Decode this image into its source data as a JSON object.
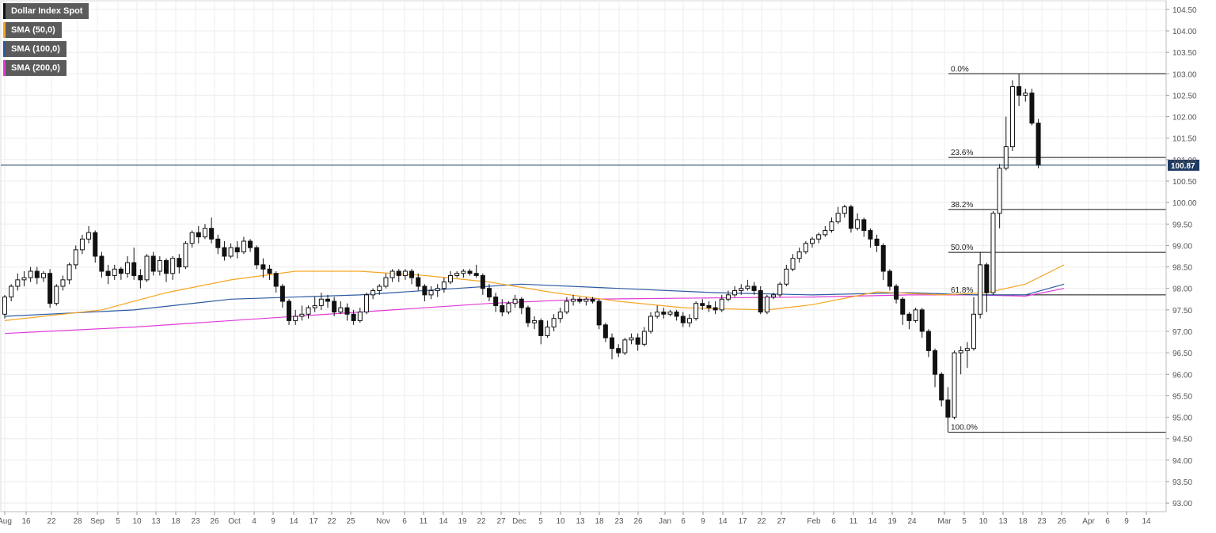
{
  "legend": [
    {
      "label": "Dollar Index Spot",
      "color": "#111111"
    },
    {
      "label": "SMA (50,0)",
      "color": "#f5a623"
    },
    {
      "label": "SMA (100,0)",
      "color": "#2c5aa0"
    },
    {
      "label": "SMA (200,0)",
      "color": "#e23ad8"
    }
  ],
  "chart_data": {
    "type": "candlestick",
    "title": "Dollar Index Spot",
    "ylim": [
      92.8,
      104.7
    ],
    "y_ticks": [
      "93.00",
      "93.50",
      "94.00",
      "94.50",
      "95.00",
      "95.50",
      "96.00",
      "96.50",
      "97.00",
      "97.50",
      "98.00",
      "98.50",
      "99.00",
      "99.50",
      "100.00",
      "100.50",
      "101.00",
      "101.50",
      "102.00",
      "102.50",
      "103.00",
      "103.50",
      "104.00",
      "104.50"
    ],
    "x_ticks": [
      "Aug",
      "16",
      "22",
      "28",
      "Sep",
      "5",
      "10",
      "13",
      "18",
      "23",
      "26",
      "Oct",
      "4",
      "9",
      "14",
      "17",
      "22",
      "25",
      "Nov",
      "6",
      "11",
      "14",
      "19",
      "22",
      "27",
      "Dec",
      "5",
      "10",
      "13",
      "18",
      "23",
      "26",
      "Jan",
      "6",
      "9",
      "14",
      "17",
      "22",
      "27",
      "Feb",
      "6",
      "11",
      "14",
      "19",
      "24",
      "Mar",
      "5",
      "10",
      "13",
      "18",
      "23",
      "26",
      "Apr",
      "6",
      "9",
      "14"
    ],
    "current_price": "100.87",
    "fibonacci": [
      {
        "label": "0.0%",
        "value": 103.0
      },
      {
        "label": "23.6%",
        "value": 101.05
      },
      {
        "label": "38.2%",
        "value": 99.84
      },
      {
        "label": "50.0%",
        "value": 98.84
      },
      {
        "label": "61.8%",
        "value": 97.85
      },
      {
        "label": "100.0%",
        "value": 94.65
      }
    ],
    "candles": [
      [
        97.4,
        97.8,
        97.3,
        97.85
      ],
      [
        97.8,
        98.05,
        97.7,
        98.1
      ],
      [
        98.05,
        98.2,
        97.95,
        98.35
      ],
      [
        98.2,
        98.25,
        98.05,
        98.4
      ],
      [
        98.25,
        98.4,
        98.15,
        98.5
      ],
      [
        98.4,
        98.25,
        98.1,
        98.5
      ],
      [
        98.25,
        98.35,
        98.15,
        98.4
      ],
      [
        98.35,
        97.65,
        97.55,
        98.45
      ],
      [
        97.65,
        98.05,
        97.6,
        98.1
      ],
      [
        98.05,
        98.2,
        97.95,
        98.3
      ],
      [
        98.2,
        98.55,
        98.1,
        98.6
      ],
      [
        98.55,
        98.9,
        98.45,
        99.0
      ],
      [
        98.9,
        99.15,
        98.8,
        99.25
      ],
      [
        99.15,
        99.3,
        99.05,
        99.45
      ],
      [
        99.3,
        98.75,
        98.6,
        99.35
      ],
      [
        98.75,
        98.4,
        98.25,
        98.85
      ],
      [
        98.4,
        98.3,
        98.1,
        98.55
      ],
      [
        98.3,
        98.45,
        98.2,
        98.55
      ],
      [
        98.45,
        98.35,
        98.2,
        98.5
      ],
      [
        98.35,
        98.6,
        98.25,
        98.75
      ],
      [
        98.6,
        98.3,
        98.2,
        98.95
      ],
      [
        98.3,
        98.2,
        98.0,
        98.45
      ],
      [
        98.2,
        98.75,
        98.15,
        98.8
      ],
      [
        98.75,
        98.4,
        98.3,
        98.85
      ],
      [
        98.4,
        98.65,
        98.3,
        98.75
      ],
      [
        98.65,
        98.35,
        98.15,
        98.7
      ],
      [
        98.35,
        98.7,
        98.2,
        98.75
      ],
      [
        98.7,
        98.5,
        98.35,
        98.8
      ],
      [
        98.5,
        99.05,
        98.45,
        99.1
      ],
      [
        99.05,
        99.3,
        98.95,
        99.35
      ],
      [
        99.3,
        99.2,
        99.05,
        99.45
      ],
      [
        99.2,
        99.4,
        99.15,
        99.5
      ],
      [
        99.4,
        99.15,
        99.05,
        99.65
      ],
      [
        99.15,
        98.95,
        98.8,
        99.25
      ],
      [
        98.95,
        98.75,
        98.65,
        99.1
      ],
      [
        98.75,
        98.95,
        98.7,
        99.05
      ],
      [
        98.95,
        98.85,
        98.7,
        99.1
      ],
      [
        98.85,
        99.1,
        98.8,
        99.2
      ],
      [
        99.1,
        98.95,
        98.85,
        99.15
      ],
      [
        98.95,
        98.55,
        98.45,
        99.0
      ],
      [
        98.55,
        98.45,
        98.25,
        98.7
      ],
      [
        98.45,
        98.35,
        98.2,
        98.55
      ],
      [
        98.35,
        98.05,
        97.9,
        98.4
      ],
      [
        98.05,
        97.7,
        97.55,
        98.1
      ],
      [
        97.7,
        97.25,
        97.15,
        97.75
      ],
      [
        97.25,
        97.35,
        97.15,
        97.5
      ],
      [
        97.35,
        97.4,
        97.25,
        97.6
      ],
      [
        97.4,
        97.55,
        97.3,
        97.6
      ],
      [
        97.55,
        97.6,
        97.45,
        97.8
      ],
      [
        97.6,
        97.75,
        97.5,
        97.9
      ],
      [
        97.75,
        97.7,
        97.55,
        97.85
      ],
      [
        97.7,
        97.45,
        97.35,
        97.8
      ],
      [
        97.45,
        97.55,
        97.4,
        97.7
      ],
      [
        97.55,
        97.4,
        97.25,
        97.65
      ],
      [
        97.4,
        97.25,
        97.15,
        97.5
      ],
      [
        97.25,
        97.45,
        97.2,
        97.55
      ],
      [
        97.45,
        97.85,
        97.4,
        97.9
      ],
      [
        97.85,
        97.95,
        97.75,
        98.0
      ],
      [
        97.95,
        98.05,
        97.85,
        98.1
      ],
      [
        98.05,
        98.25,
        98.0,
        98.35
      ],
      [
        98.25,
        98.4,
        98.15,
        98.45
      ],
      [
        98.4,
        98.3,
        98.15,
        98.45
      ],
      [
        98.3,
        98.4,
        98.2,
        98.45
      ],
      [
        98.4,
        98.25,
        98.1,
        98.45
      ],
      [
        98.25,
        98.05,
        97.95,
        98.35
      ],
      [
        98.05,
        97.85,
        97.7,
        98.1
      ],
      [
        97.85,
        97.95,
        97.75,
        98.05
      ],
      [
        97.95,
        98.0,
        97.8,
        98.1
      ],
      [
        98.0,
        98.15,
        97.9,
        98.25
      ],
      [
        98.15,
        98.3,
        98.1,
        98.4
      ],
      [
        98.3,
        98.35,
        98.25,
        98.4
      ],
      [
        98.35,
        98.4,
        98.25,
        98.45
      ],
      [
        98.4,
        98.35,
        98.3,
        98.45
      ],
      [
        98.35,
        98.3,
        98.25,
        98.55
      ],
      [
        98.3,
        98.0,
        97.85,
        98.35
      ],
      [
        98.0,
        97.8,
        97.7,
        98.1
      ],
      [
        97.8,
        97.6,
        97.45,
        97.9
      ],
      [
        97.6,
        97.45,
        97.35,
        97.75
      ],
      [
        97.45,
        97.65,
        97.4,
        97.7
      ],
      [
        97.65,
        97.75,
        97.55,
        97.85
      ],
      [
        97.75,
        97.55,
        97.4,
        97.8
      ],
      [
        97.55,
        97.2,
        97.1,
        97.6
      ],
      [
        97.2,
        97.25,
        97.05,
        97.35
      ],
      [
        97.25,
        96.9,
        96.7,
        97.3
      ],
      [
        96.9,
        97.1,
        96.85,
        97.25
      ],
      [
        97.1,
        97.3,
        97.0,
        97.4
      ],
      [
        97.3,
        97.45,
        97.2,
        97.55
      ],
      [
        97.45,
        97.7,
        97.4,
        97.8
      ],
      [
        97.7,
        97.75,
        97.6,
        97.85
      ],
      [
        97.75,
        97.7,
        97.65,
        97.8
      ],
      [
        97.7,
        97.75,
        97.6,
        97.8
      ],
      [
        97.75,
        97.7,
        97.65,
        97.8
      ],
      [
        97.7,
        97.15,
        97.05,
        97.75
      ],
      [
        97.15,
        96.85,
        96.75,
        97.2
      ],
      [
        96.85,
        96.6,
        96.35,
        96.95
      ],
      [
        96.6,
        96.5,
        96.4,
        96.7
      ],
      [
        96.5,
        96.8,
        96.45,
        96.85
      ],
      [
        96.8,
        96.85,
        96.7,
        96.95
      ],
      [
        96.85,
        96.7,
        96.55,
        96.95
      ],
      [
        96.7,
        97.0,
        96.65,
        97.1
      ],
      [
        97.0,
        97.35,
        96.95,
        97.45
      ],
      [
        97.35,
        97.45,
        97.3,
        97.6
      ],
      [
        97.45,
        97.4,
        97.3,
        97.55
      ],
      [
        97.4,
        97.45,
        97.35,
        97.5
      ],
      [
        97.45,
        97.35,
        97.25,
        97.5
      ],
      [
        97.35,
        97.2,
        97.1,
        97.45
      ],
      [
        97.2,
        97.3,
        97.1,
        97.4
      ],
      [
        97.3,
        97.65,
        97.25,
        97.7
      ],
      [
        97.65,
        97.6,
        97.5,
        97.75
      ],
      [
        97.6,
        97.55,
        97.45,
        97.7
      ],
      [
        97.55,
        97.5,
        97.4,
        97.7
      ],
      [
        97.5,
        97.75,
        97.45,
        97.85
      ],
      [
        97.75,
        97.85,
        97.7,
        97.95
      ],
      [
        97.85,
        97.95,
        97.8,
        98.05
      ],
      [
        97.95,
        98.0,
        97.85,
        98.1
      ],
      [
        98.0,
        98.05,
        97.95,
        98.2
      ],
      [
        98.05,
        97.95,
        97.85,
        98.15
      ],
      [
        97.95,
        97.45,
        97.4,
        98.05
      ],
      [
        97.45,
        97.8,
        97.4,
        97.85
      ],
      [
        97.8,
        97.85,
        97.75,
        97.9
      ],
      [
        97.85,
        98.1,
        97.8,
        98.15
      ],
      [
        98.1,
        98.45,
        98.05,
        98.55
      ],
      [
        98.45,
        98.7,
        98.4,
        98.8
      ],
      [
        98.7,
        98.85,
        98.6,
        98.95
      ],
      [
        98.85,
        99.05,
        98.8,
        99.1
      ],
      [
        99.05,
        99.15,
        98.95,
        99.2
      ],
      [
        99.15,
        99.25,
        99.05,
        99.3
      ],
      [
        99.25,
        99.35,
        99.2,
        99.45
      ],
      [
        99.35,
        99.55,
        99.3,
        99.65
      ],
      [
        99.55,
        99.75,
        99.5,
        99.9
      ],
      [
        99.75,
        99.9,
        99.65,
        99.95
      ],
      [
        99.9,
        99.4,
        99.3,
        99.95
      ],
      [
        99.4,
        99.6,
        99.35,
        99.75
      ],
      [
        99.6,
        99.35,
        99.2,
        99.65
      ],
      [
        99.35,
        99.15,
        98.95,
        99.4
      ],
      [
        99.15,
        99.0,
        98.85,
        99.25
      ],
      [
        99.0,
        98.4,
        98.2,
        99.05
      ],
      [
        98.4,
        98.05,
        97.95,
        98.45
      ],
      [
        98.05,
        97.75,
        97.65,
        98.1
      ],
      [
        97.75,
        97.4,
        97.15,
        97.8
      ],
      [
        97.4,
        97.25,
        97.05,
        97.45
      ],
      [
        97.25,
        97.5,
        97.2,
        97.55
      ],
      [
        97.5,
        97.0,
        96.85,
        97.55
      ],
      [
        97.0,
        96.55,
        96.4,
        97.05
      ],
      [
        96.55,
        96.0,
        95.7,
        96.6
      ],
      [
        96.0,
        95.4,
        95.25,
        96.05
      ],
      [
        95.4,
        95.0,
        94.65,
        95.7
      ],
      [
        95.0,
        96.5,
        94.95,
        96.55
      ],
      [
        96.5,
        96.55,
        96.0,
        96.65
      ],
      [
        96.55,
        96.6,
        96.15,
        96.75
      ],
      [
        96.6,
        97.4,
        96.55,
        97.8
      ],
      [
        97.4,
        98.55,
        97.3,
        98.85
      ],
      [
        98.55,
        97.9,
        97.45,
        98.6
      ],
      [
        97.9,
        99.75,
        97.85,
        99.8
      ],
      [
        99.75,
        100.8,
        99.4,
        100.9
      ],
      [
        100.8,
        101.3,
        100.75,
        102.0
      ],
      [
        101.3,
        102.7,
        101.2,
        102.85
      ],
      [
        102.7,
        102.5,
        102.25,
        103.0
      ],
      [
        102.5,
        102.55,
        102.35,
        102.65
      ],
      [
        102.55,
        101.85,
        101.8,
        102.65
      ],
      [
        101.85,
        100.87,
        100.8,
        101.95
      ]
    ],
    "sma50": [
      [
        0,
        97.25
      ],
      [
        15,
        97.5
      ],
      [
        25,
        97.9
      ],
      [
        35,
        98.2
      ],
      [
        45,
        98.4
      ],
      [
        55,
        98.4
      ],
      [
        65,
        98.3
      ],
      [
        75,
        98.15
      ],
      [
        85,
        97.9
      ],
      [
        95,
        97.7
      ],
      [
        105,
        97.55
      ],
      [
        118,
        97.5
      ],
      [
        125,
        97.62
      ],
      [
        135,
        97.92
      ],
      [
        145,
        97.85
      ],
      [
        152,
        97.9
      ],
      [
        158,
        98.1
      ],
      [
        164,
        98.55
      ]
    ],
    "sma100": [
      [
        0,
        97.35
      ],
      [
        20,
        97.5
      ],
      [
        35,
        97.75
      ],
      [
        55,
        97.85
      ],
      [
        70,
        98.0
      ],
      [
        80,
        98.1
      ],
      [
        95,
        98.0
      ],
      [
        110,
        97.9
      ],
      [
        125,
        97.85
      ],
      [
        140,
        97.9
      ],
      [
        150,
        97.85
      ],
      [
        158,
        97.85
      ],
      [
        164,
        98.1
      ]
    ],
    "sma200": [
      [
        0,
        96.95
      ],
      [
        20,
        97.1
      ],
      [
        40,
        97.3
      ],
      [
        60,
        97.5
      ],
      [
        75,
        97.65
      ],
      [
        90,
        97.75
      ],
      [
        110,
        97.78
      ],
      [
        125,
        97.8
      ],
      [
        140,
        97.85
      ],
      [
        150,
        97.85
      ],
      [
        158,
        97.82
      ],
      [
        164,
        98.0
      ]
    ]
  }
}
